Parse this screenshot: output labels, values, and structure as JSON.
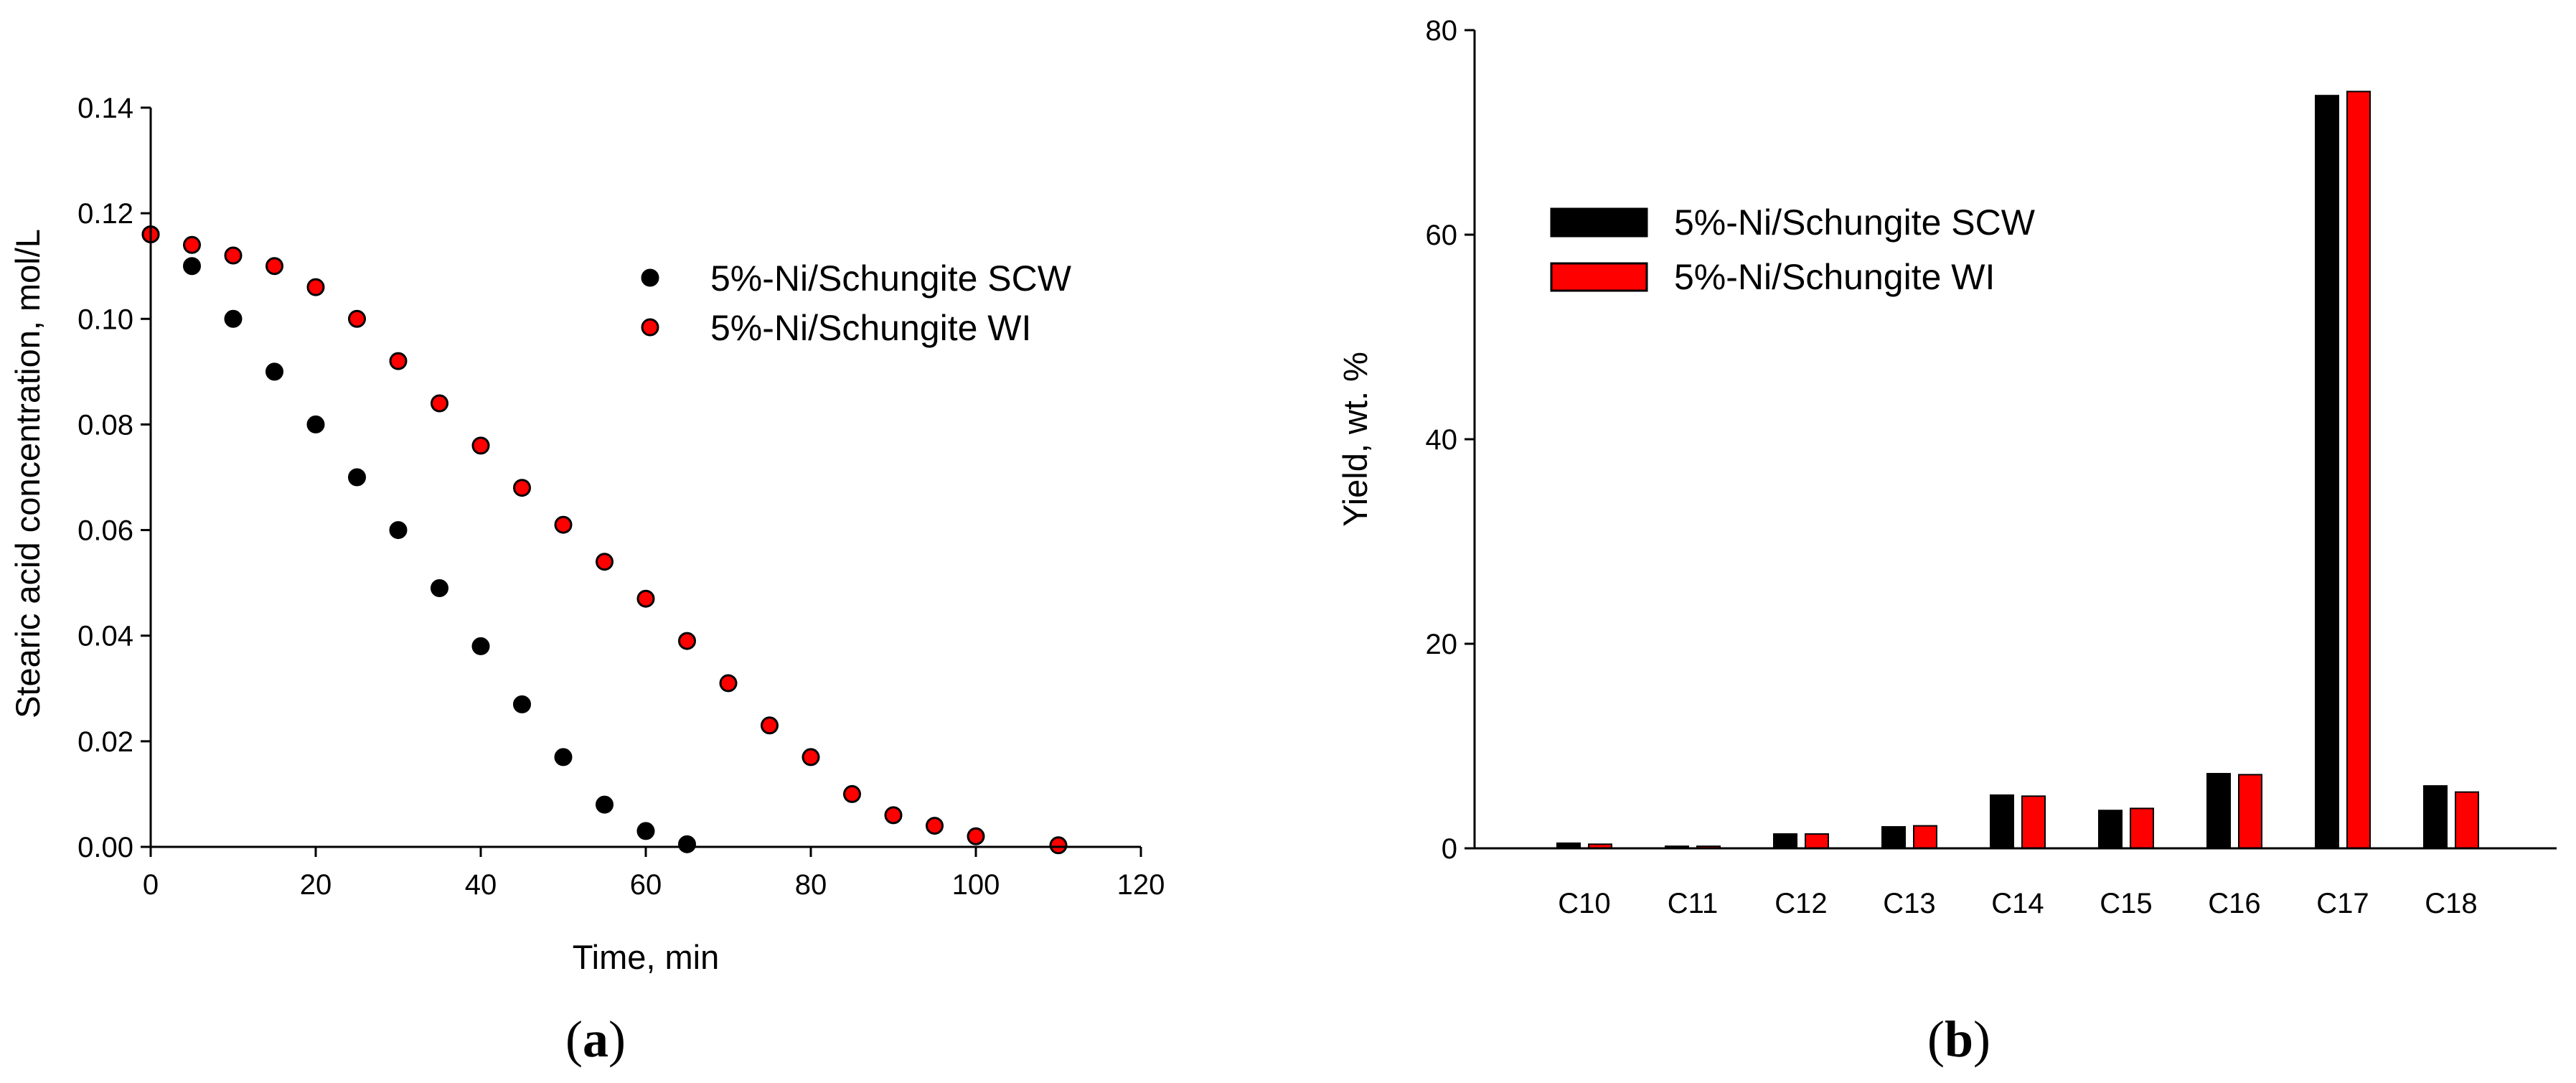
{
  "chart_data": [
    {
      "type": "scatter",
      "panel_label": "a",
      "title": "",
      "xlabel": "Time, min",
      "ylabel": "Stearic acid concentration, mol/L",
      "xlim": [
        0,
        120
      ],
      "ylim": [
        0,
        0.14
      ],
      "xticks": [
        "0",
        "20",
        "40",
        "60",
        "80",
        "100",
        "120"
      ],
      "yticks": [
        "0.00",
        "0.02",
        "0.04",
        "0.06",
        "0.08",
        "0.10",
        "0.12",
        "0.14"
      ],
      "grid": false,
      "legend_position": "top-right",
      "series": [
        {
          "name": "5%-Ni/Schungite SCW",
          "color": "#000000",
          "x": [
            0,
            5,
            10,
            15,
            20,
            25,
            30,
            35,
            40,
            45,
            50,
            55,
            60,
            65
          ],
          "y": [
            0.116,
            0.11,
            0.1,
            0.09,
            0.08,
            0.07,
            0.06,
            0.049,
            0.038,
            0.027,
            0.017,
            0.008,
            0.003,
            0.0005
          ]
        },
        {
          "name": "5%-Ni/Schungite WI",
          "color": "#ff0000",
          "x": [
            0,
            5,
            10,
            15,
            20,
            25,
            30,
            35,
            40,
            45,
            50,
            55,
            60,
            65,
            70,
            75,
            80,
            85,
            90,
            95,
            100,
            110
          ],
          "y": [
            0.116,
            0.114,
            0.112,
            0.11,
            0.106,
            0.1,
            0.092,
            0.084,
            0.076,
            0.068,
            0.061,
            0.054,
            0.047,
            0.039,
            0.031,
            0.023,
            0.017,
            0.01,
            0.006,
            0.004,
            0.002,
            0.0003
          ]
        }
      ]
    },
    {
      "type": "bar",
      "panel_label": "b",
      "title": "",
      "xlabel": "",
      "ylabel": "Yield, wt. %",
      "ylim": [
        0,
        80
      ],
      "yticks": [
        "0",
        "20",
        "40",
        "60",
        "80"
      ],
      "grid": false,
      "legend_position": "top-left",
      "categories": [
        "C10",
        "C11",
        "C12",
        "C13",
        "C14",
        "C15",
        "C16",
        "C17",
        "C18"
      ],
      "series": [
        {
          "name": "5%-Ni/Schungite SCW",
          "color": "#000000",
          "values": [
            0.5,
            0.2,
            1.4,
            2.1,
            5.2,
            3.7,
            7.3,
            73.6,
            6.1
          ]
        },
        {
          "name": "5%-Ni/Schungite WI",
          "color": "#ff0000",
          "values": [
            0.4,
            0.2,
            1.4,
            2.2,
            5.1,
            3.9,
            7.2,
            74.0,
            5.5
          ]
        }
      ]
    }
  ]
}
